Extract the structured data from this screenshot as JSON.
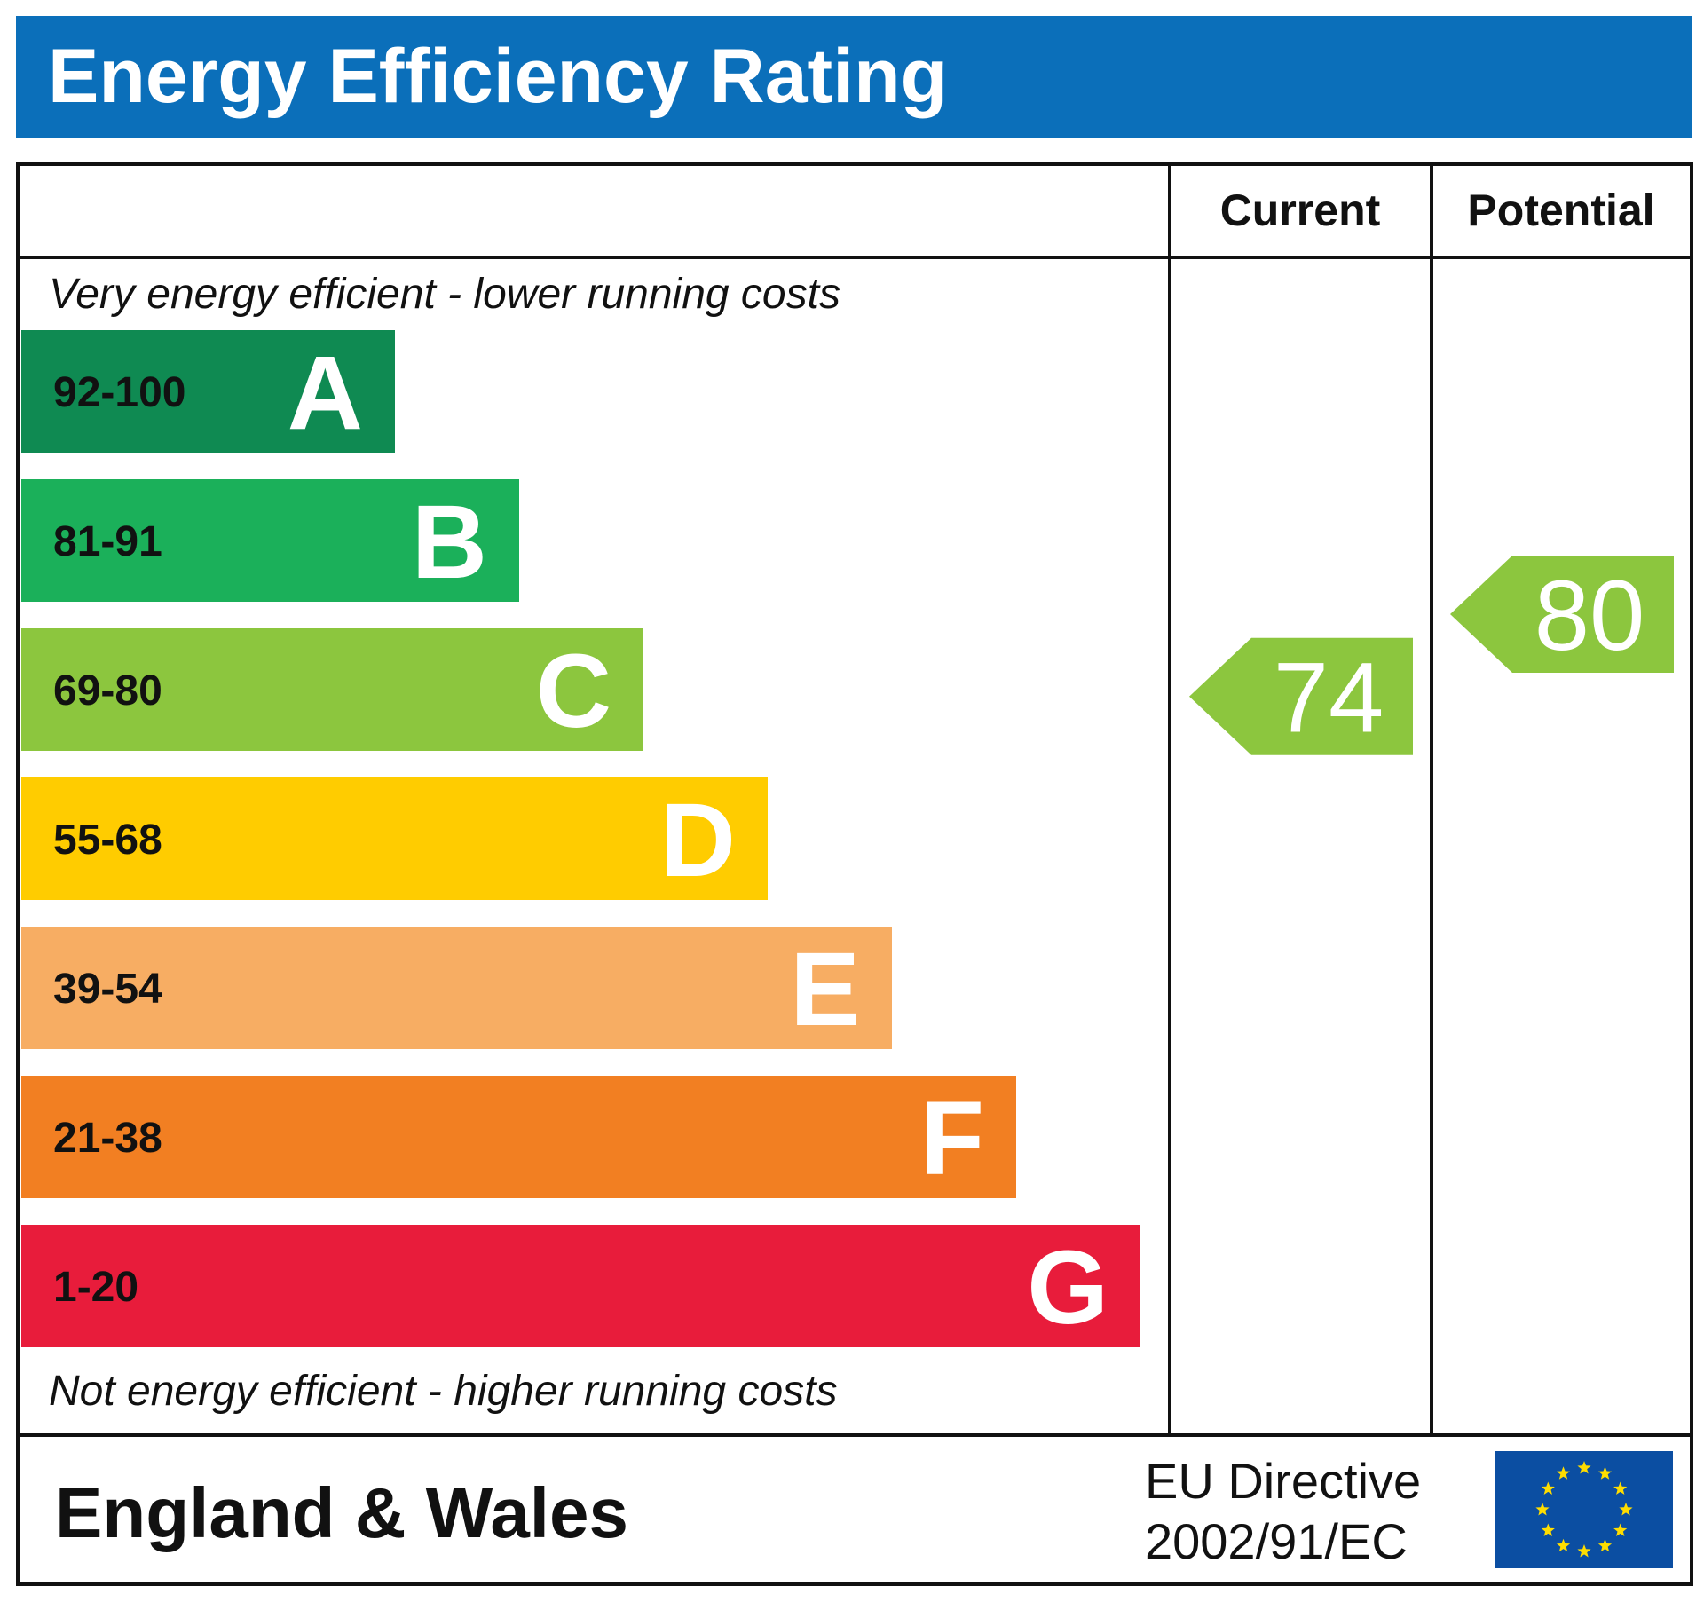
{
  "title": "Energy Efficiency Rating",
  "chart_data": {
    "type": "bar",
    "title": "Energy Efficiency Rating",
    "columns": {
      "current": "Current",
      "potential": "Potential"
    },
    "top_note": "Very energy efficient - lower running costs",
    "bottom_note": "Not energy efficient - higher running costs",
    "bands": [
      {
        "range": "92-100",
        "letter": "A",
        "color": "#0f8a52"
      },
      {
        "range": "81-91",
        "letter": "B",
        "color": "#1bb05a"
      },
      {
        "range": "69-80",
        "letter": "C",
        "color": "#8cc63e"
      },
      {
        "range": "55-68",
        "letter": "D",
        "color": "#ffcc00"
      },
      {
        "range": "39-54",
        "letter": "E",
        "color": "#f7ad63"
      },
      {
        "range": "21-38",
        "letter": "F",
        "color": "#f27f22"
      },
      {
        "range": "1-20",
        "letter": "G",
        "color": "#e81c3b"
      }
    ],
    "current": {
      "value": 74,
      "label": "74",
      "band": "C",
      "color": "#8cc63e"
    },
    "potential": {
      "value": 80,
      "label": "80",
      "band": "C",
      "color": "#8cc63e"
    }
  },
  "footer": {
    "region": "England & Wales",
    "directive_line1": "EU Directive",
    "directive_line2": "2002/91/EC",
    "flag": {
      "icon": "eu-flag-icon",
      "background": "#0b4ea2",
      "star_color": "#ffdd00"
    }
  }
}
